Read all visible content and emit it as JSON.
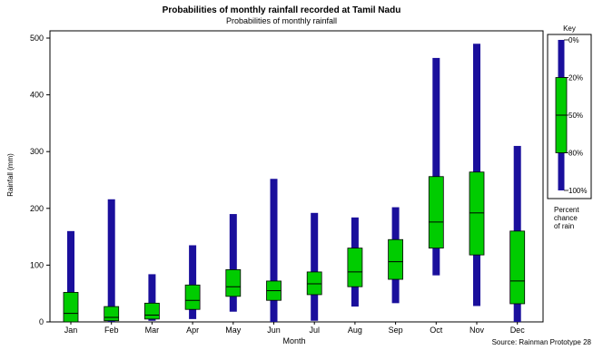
{
  "chart_data": {
    "type": "box",
    "title": "Probabilities of monthly rainfall recorded at Tamil Nadu",
    "subtitle": "Probabilities of monthly rainfall",
    "xlabel": "Month",
    "ylabel": "Rainfall (mm)",
    "ylim": [
      0,
      520
    ],
    "yticks": [
      0,
      100,
      200,
      300,
      400,
      500
    ],
    "grid": false,
    "categories": [
      "Jan",
      "Feb",
      "Mar",
      "Apr",
      "May",
      "Jun",
      "Jul",
      "Aug",
      "Sep",
      "Oct",
      "Nov",
      "Dec"
    ],
    "series": [
      {
        "p0": 0,
        "p20": 0,
        "p50": 15,
        "p80": 52,
        "p100": 160
      },
      {
        "p0": 0,
        "p20": 2,
        "p50": 8,
        "p80": 27,
        "p100": 216
      },
      {
        "p0": 2,
        "p20": 5,
        "p50": 12,
        "p80": 33,
        "p100": 84
      },
      {
        "p0": 5,
        "p20": 22,
        "p50": 38,
        "p80": 65,
        "p100": 135
      },
      {
        "p0": 18,
        "p20": 45,
        "p50": 62,
        "p80": 92,
        "p100": 190
      },
      {
        "p0": 0,
        "p20": 38,
        "p50": 55,
        "p80": 72,
        "p100": 252
      },
      {
        "p0": 2,
        "p20": 48,
        "p50": 67,
        "p80": 88,
        "p100": 192
      },
      {
        "p0": 27,
        "p20": 62,
        "p50": 88,
        "p80": 130,
        "p100": 184
      },
      {
        "p0": 33,
        "p20": 75,
        "p50": 106,
        "p80": 145,
        "p100": 202
      },
      {
        "p0": 82,
        "p20": 130,
        "p50": 176,
        "p80": 256,
        "p100": 465
      },
      {
        "p0": 28,
        "p20": 118,
        "p50": 192,
        "p80": 264,
        "p100": 490
      },
      {
        "p0": 0,
        "p20": 32,
        "p50": 72,
        "p80": 160,
        "p100": 310
      }
    ],
    "legend": {
      "title": "Key",
      "labels": [
        "0%",
        "20%",
        "50%",
        "80%",
        "100%"
      ],
      "caption": [
        "Percent",
        "chance",
        "of rain"
      ],
      "placement": "right"
    },
    "source": "Source: Rainman Prototype 28",
    "colors": {
      "whisker": "#1a0f9c",
      "box": "#00cc00",
      "box_stroke": "#000000"
    }
  }
}
